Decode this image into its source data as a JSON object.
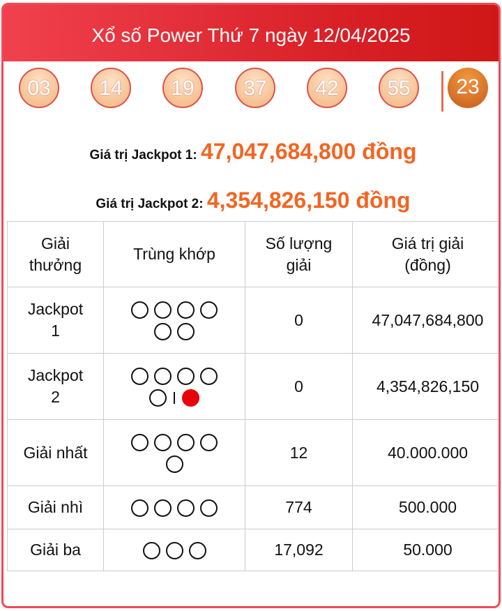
{
  "title": "Xổ số Power Thứ 7 ngày 12/04/2025",
  "balls": [
    "03",
    "14",
    "19",
    "37",
    "42",
    "55"
  ],
  "power_ball": "23",
  "jackpot1": {
    "label": "Giá trị Jackpot 1:",
    "value": "47,047,684,800 đồng"
  },
  "jackpot2": {
    "label": "Giá trị Jackpot 2:",
    "value": "4,354,826,150 đồng"
  },
  "table": {
    "headers": [
      "Giải thưởng",
      "Trùng khớp",
      "Số lượng giải",
      "Giá trị giải (đồng)"
    ],
    "rows": [
      {
        "prize": "Jackpot 1",
        "match": "6",
        "count": "0",
        "value": "47,047,684,800"
      },
      {
        "prize": "Jackpot 2",
        "match": "5 + power",
        "count": "0",
        "value": "4,354,826,150"
      },
      {
        "prize": "Giải nhất",
        "match": "5",
        "count": "12",
        "value": "40.000.000"
      },
      {
        "prize": "Giải nhì",
        "match": "4",
        "count": "774",
        "value": "500.000"
      },
      {
        "prize": "Giải ba",
        "match": "3",
        "count": "17,092",
        "value": "50.000"
      }
    ]
  },
  "colors": {
    "header": "#d81f26",
    "accent": "#f26522",
    "power": "#e8000b"
  }
}
